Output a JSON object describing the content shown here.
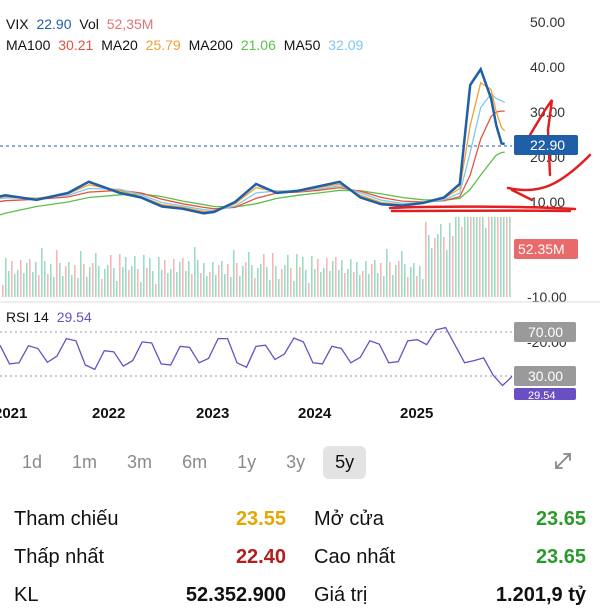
{
  "legend": {
    "row1": [
      {
        "label": "VIX",
        "value": "22.90",
        "color": "#1e5fa8"
      },
      {
        "label": "Vol",
        "value": "52,35M",
        "color": "#e57373"
      }
    ],
    "row2": [
      {
        "label": "MA100",
        "value": "30.21",
        "color": "#e5533a"
      },
      {
        "label": "MA20",
        "value": "25.79",
        "color": "#f0a030"
      },
      {
        "label": "MA200",
        "value": "21.06",
        "color": "#5cc04a"
      },
      {
        "label": "MA50",
        "value": "32.09",
        "color": "#7fc8f0"
      }
    ]
  },
  "price_axis": [
    "50.00",
    "40.00",
    "30.00",
    "20.00",
    "10.00",
    "-10.00"
  ],
  "rsi_axis": [
    "-20.00"
  ],
  "badges": {
    "price": "22.90",
    "volume": "52.35M",
    "rsi_70": "70.00",
    "rsi_30": "30.00",
    "rsi_value": "29.54"
  },
  "rsi_label": {
    "name": "RSI 14",
    "value": "29.54"
  },
  "x_axis": [
    "2021",
    "2022",
    "2023",
    "2024",
    "2025"
  ],
  "timeframes": [
    "1d",
    "1m",
    "3m",
    "6m",
    "1y",
    "3y",
    "5y"
  ],
  "active_timeframe": "5y",
  "stats": [
    [
      {
        "label": "Tham chiếu",
        "value": "23.55",
        "color": "#e0a800"
      },
      {
        "label": "Mở cửa",
        "value": "23.65",
        "color": "#2a9a2a"
      }
    ],
    [
      {
        "label": "Thấp nhất",
        "value": "22.40",
        "color": "#b21f1f"
      },
      {
        "label": "Cao nhất",
        "value": "23.65",
        "color": "#2a9a2a"
      }
    ],
    [
      {
        "label": "KL",
        "value": "52.352.900",
        "color": "#111111"
      },
      {
        "label": "Giá trị",
        "value": "1.201,9 tỷ",
        "color": "#111111"
      }
    ]
  ],
  "colors": {
    "price_line": "#1e5fa8",
    "ma100": "#e5533a",
    "ma20": "#f0a030",
    "ma200": "#5cc04a",
    "ma50": "#7fc8f0",
    "vol_up": "#7ecfb0",
    "vol_down": "#f0a0a0",
    "rsi": "#6a4fc2",
    "annotation": "#e02020"
  },
  "chart_data": [
    {
      "type": "line",
      "ylim": [
        -10,
        50
      ],
      "yticks": [
        50,
        40,
        30,
        20,
        10,
        -10
      ],
      "xticks": [
        "2021",
        "2022",
        "2023",
        "2024",
        "2025"
      ],
      "x": [
        2020.8,
        2021.0,
        2021.3,
        2021.6,
        2021.8,
        2022.1,
        2022.3,
        2022.5,
        2022.7,
        2022.9,
        2023.0,
        2023.2,
        2023.4,
        2023.6,
        2023.8,
        2024.0,
        2024.2,
        2024.4,
        2024.6,
        2024.8,
        2025.0,
        2025.2,
        2025.35,
        2025.45,
        2025.55,
        2025.65,
        2025.7,
        2025.75,
        2025.78
      ],
      "series": [
        {
          "name": "VIX",
          "values": [
            10.5,
            11.5,
            10.5,
            12.0,
            14.5,
            12.0,
            11.0,
            9.0,
            8.5,
            7.5,
            7.8,
            10.0,
            14.0,
            12.0,
            12.5,
            13.5,
            14.5,
            11.0,
            9.5,
            9.2,
            9.8,
            11.0,
            14.0,
            36.0,
            39.5,
            33.0,
            27.0,
            23.0,
            22.9
          ]
        },
        {
          "name": "MA20",
          "values": [
            10.8,
            11.2,
            10.8,
            11.8,
            13.8,
            12.5,
            11.2,
            9.4,
            8.8,
            7.9,
            7.9,
            9.6,
            13.2,
            12.3,
            12.4,
            13.2,
            14.0,
            11.5,
            9.9,
            9.4,
            9.8,
            10.8,
            13.0,
            27.0,
            36.5,
            35.0,
            30.0,
            26.5,
            25.79
          ]
        },
        {
          "name": "MA50",
          "values": [
            10.4,
            10.9,
            10.9,
            11.5,
            13.0,
            12.8,
            11.6,
            9.9,
            9.1,
            8.3,
            8.1,
            9.1,
            12.0,
            12.5,
            12.4,
            12.9,
            13.6,
            12.0,
            10.4,
            9.7,
            9.8,
            10.5,
            12.0,
            21.0,
            31.0,
            34.0,
            33.0,
            32.5,
            32.09
          ]
        },
        {
          "name": "MA100",
          "values": [
            9.5,
            10.3,
            10.6,
            11.1,
            12.2,
            12.6,
            12.0,
            10.6,
            9.6,
            8.8,
            8.5,
            8.8,
            10.8,
            12.0,
            12.2,
            12.6,
            13.2,
            12.4,
            11.0,
            10.2,
            10.0,
            10.3,
            11.2,
            16.0,
            24.0,
            29.0,
            30.0,
            30.2,
            30.21
          ]
        },
        {
          "name": "MA200",
          "values": [
            6.0,
            7.5,
            9.0,
            10.0,
            11.0,
            11.6,
            11.8,
            11.2,
            10.2,
            9.4,
            9.0,
            8.9,
            9.6,
            10.8,
            11.5,
            12.0,
            12.6,
            12.5,
            11.8,
            11.0,
            10.5,
            10.4,
            10.8,
            12.8,
            16.0,
            19.0,
            20.4,
            21.0,
            21.06
          ]
        }
      ]
    },
    {
      "type": "line",
      "series": [
        {
          "name": "RSI 14",
          "values": [
            58,
            42,
            55,
            48,
            62,
            36,
            52,
            44,
            60,
            40,
            56,
            46,
            64,
            38,
            58,
            50,
            61,
            41,
            55,
            47,
            59,
            43,
            63,
            72,
            58,
            44,
            31,
            29.54
          ]
        }
      ],
      "levels": [
        70,
        30
      ]
    }
  ]
}
